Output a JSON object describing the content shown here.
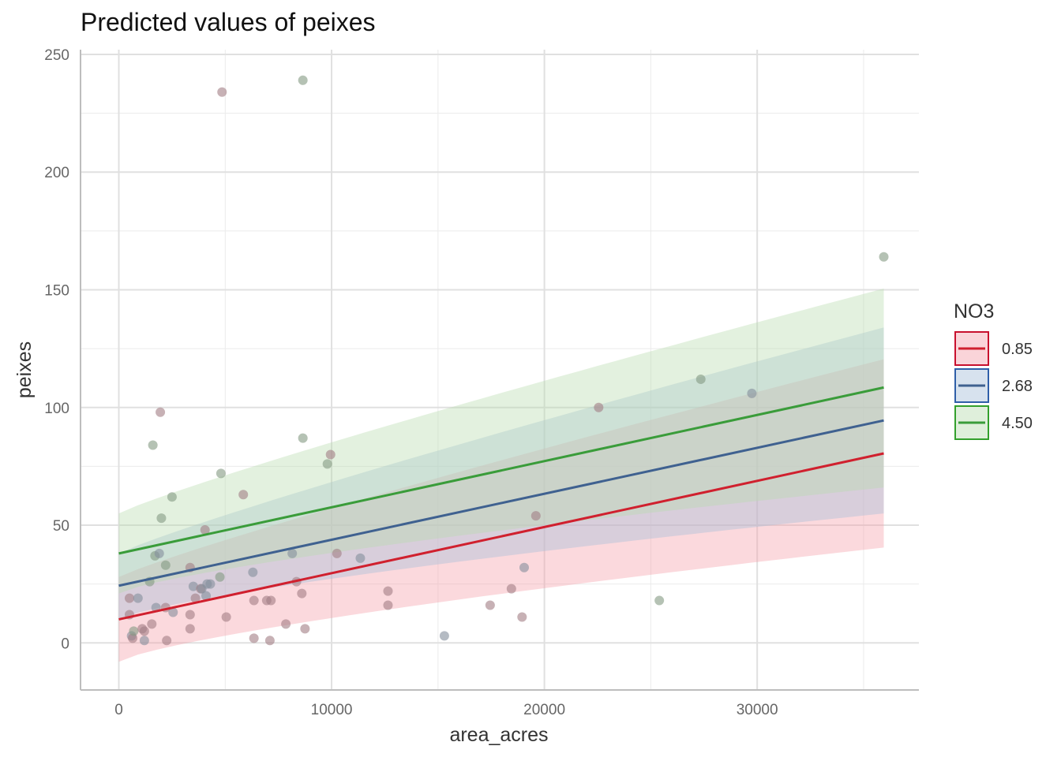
{
  "chart_data": {
    "type": "line",
    "title": "Predicted values of peixes",
    "xlabel": "area_acres",
    "ylabel": "peixes",
    "xlim": [
      -1800,
      37600
    ],
    "ylim": [
      -20,
      252
    ],
    "x_ticks": [
      0,
      10000,
      20000,
      30000
    ],
    "x_tick_labels": [
      "0",
      "10000",
      "20000",
      "30000"
    ],
    "y_ticks": [
      0,
      50,
      100,
      150,
      200,
      250
    ],
    "y_tick_labels": [
      "0",
      "50",
      "100",
      "150",
      "200",
      "250"
    ],
    "grid": true,
    "legend": {
      "title": "NO3",
      "position": "right"
    },
    "x_range": [
      0,
      35950
    ],
    "series": [
      {
        "name": "0.85",
        "color": "#C8102E",
        "line_color": "#D0202E",
        "band_color": "#F4A0AA",
        "intercept": 10,
        "end_value": 80.5,
        "ci_lower": [
          -8,
          40.5
        ],
        "ci_upper": [
          28,
          120.5
        ]
      },
      {
        "name": "2.68",
        "color": "#2F5FA8",
        "line_color": "#3F6190",
        "band_color": "#A6BEDA",
        "intercept": 24.3,
        "end_value": 94.5,
        "ci_lower": [
          10,
          55
        ],
        "ci_upper": [
          38,
          134
        ]
      },
      {
        "name": "4.50",
        "color": "#33A02C",
        "line_color": "#3A9C3A",
        "band_color": "#B8DCB0",
        "intercept": 38,
        "end_value": 108.5,
        "ci_lower": [
          21,
          66
        ],
        "ci_upper": [
          55,
          150.5
        ]
      }
    ],
    "points": [
      {
        "x": 500,
        "y": 19,
        "g": "0.85"
      },
      {
        "x": 500,
        "y": 12,
        "g": "0.85"
      },
      {
        "x": 600,
        "y": 3,
        "g": "2.68"
      },
      {
        "x": 650,
        "y": 2,
        "g": "0.85"
      },
      {
        "x": 700,
        "y": 5,
        "g": "4.50"
      },
      {
        "x": 900,
        "y": 19,
        "g": "2.68"
      },
      {
        "x": 1100,
        "y": 6,
        "g": "0.85"
      },
      {
        "x": 1200,
        "y": 5,
        "g": "0.85"
      },
      {
        "x": 1200,
        "y": 1,
        "g": "2.68"
      },
      {
        "x": 1450,
        "y": 26,
        "g": "4.50"
      },
      {
        "x": 1550,
        "y": 8,
        "g": "0.85"
      },
      {
        "x": 1600,
        "y": 84,
        "g": "4.50"
      },
      {
        "x": 1700,
        "y": 37,
        "g": "4.50"
      },
      {
        "x": 1750,
        "y": 15,
        "g": "2.68"
      },
      {
        "x": 1900,
        "y": 38,
        "g": "2.68"
      },
      {
        "x": 1950,
        "y": 98,
        "g": "0.85"
      },
      {
        "x": 2000,
        "y": 53,
        "g": "4.50"
      },
      {
        "x": 2200,
        "y": 33,
        "g": "4.50"
      },
      {
        "x": 2200,
        "y": 15,
        "g": "0.85"
      },
      {
        "x": 2250,
        "y": 1,
        "g": "0.85"
      },
      {
        "x": 2500,
        "y": 62,
        "g": "4.50"
      },
      {
        "x": 2550,
        "y": 13,
        "g": "2.68"
      },
      {
        "x": 3350,
        "y": 32,
        "g": "0.85"
      },
      {
        "x": 3350,
        "y": 12,
        "g": "0.85"
      },
      {
        "x": 3350,
        "y": 6,
        "g": "0.85"
      },
      {
        "x": 3500,
        "y": 24,
        "g": "2.68"
      },
      {
        "x": 3600,
        "y": 19,
        "g": "0.85"
      },
      {
        "x": 3850,
        "y": 23,
        "g": "0.85"
      },
      {
        "x": 3900,
        "y": 23,
        "g": "2.68"
      },
      {
        "x": 4050,
        "y": 48,
        "g": "0.85"
      },
      {
        "x": 4100,
        "y": 20,
        "g": "2.68"
      },
      {
        "x": 4150,
        "y": 25,
        "g": "2.68"
      },
      {
        "x": 4300,
        "y": 25,
        "g": "2.68"
      },
      {
        "x": 4750,
        "y": 28,
        "g": "4.50"
      },
      {
        "x": 4800,
        "y": 72,
        "g": "4.50"
      },
      {
        "x": 4850,
        "y": 234,
        "g": "0.85"
      },
      {
        "x": 5050,
        "y": 11,
        "g": "0.85"
      },
      {
        "x": 5850,
        "y": 63,
        "g": "0.85"
      },
      {
        "x": 6300,
        "y": 30,
        "g": "2.68"
      },
      {
        "x": 6350,
        "y": 18,
        "g": "0.85"
      },
      {
        "x": 6350,
        "y": 2,
        "g": "0.85"
      },
      {
        "x": 6950,
        "y": 18,
        "g": "0.85"
      },
      {
        "x": 7100,
        "y": 1,
        "g": "0.85"
      },
      {
        "x": 7150,
        "y": 18,
        "g": "0.85"
      },
      {
        "x": 7850,
        "y": 8,
        "g": "0.85"
      },
      {
        "x": 8150,
        "y": 38,
        "g": "2.68"
      },
      {
        "x": 8350,
        "y": 26,
        "g": "0.85"
      },
      {
        "x": 8600,
        "y": 21,
        "g": "0.85"
      },
      {
        "x": 8650,
        "y": 239,
        "g": "4.50"
      },
      {
        "x": 8650,
        "y": 87,
        "g": "4.50"
      },
      {
        "x": 8750,
        "y": 6,
        "g": "0.85"
      },
      {
        "x": 9800,
        "y": 76,
        "g": "4.50"
      },
      {
        "x": 9950,
        "y": 80,
        "g": "0.85"
      },
      {
        "x": 10250,
        "y": 38,
        "g": "0.85"
      },
      {
        "x": 11350,
        "y": 36,
        "g": "2.68"
      },
      {
        "x": 12650,
        "y": 22,
        "g": "0.85"
      },
      {
        "x": 12650,
        "y": 16,
        "g": "0.85"
      },
      {
        "x": 15300,
        "y": 3,
        "g": "2.68"
      },
      {
        "x": 17450,
        "y": 16,
        "g": "0.85"
      },
      {
        "x": 18450,
        "y": 23,
        "g": "0.85"
      },
      {
        "x": 18950,
        "y": 11,
        "g": "0.85"
      },
      {
        "x": 19050,
        "y": 32,
        "g": "2.68"
      },
      {
        "x": 19600,
        "y": 54,
        "g": "0.85"
      },
      {
        "x": 22550,
        "y": 100,
        "g": "0.85"
      },
      {
        "x": 25400,
        "y": 18,
        "g": "4.50"
      },
      {
        "x": 27350,
        "y": 112,
        "g": "4.50"
      },
      {
        "x": 29750,
        "y": 106,
        "g": "2.68"
      },
      {
        "x": 35950,
        "y": 164,
        "g": "4.50"
      }
    ]
  }
}
